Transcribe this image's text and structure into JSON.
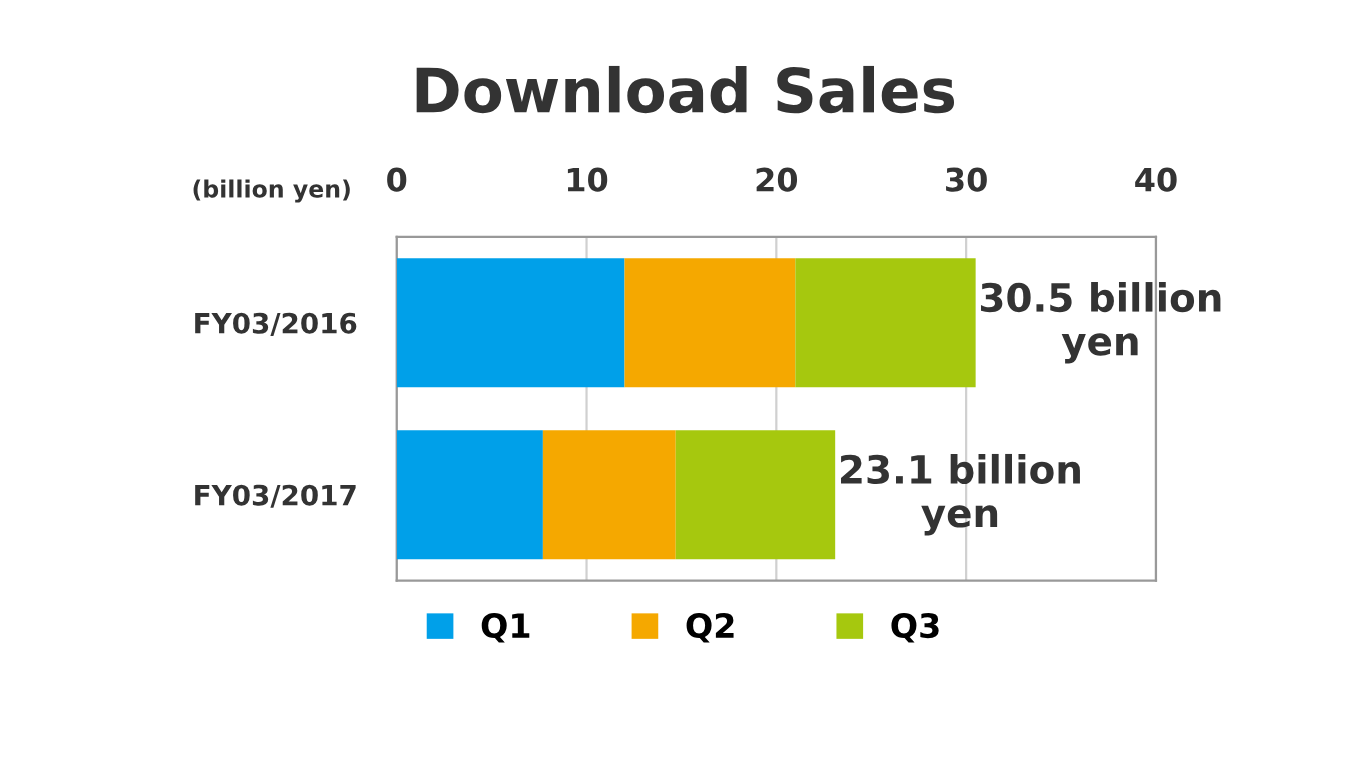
{
  "chart_data": {
    "type": "bar",
    "orientation": "horizontal",
    "stacked": true,
    "title": "Download Sales",
    "xlabel": "(billion yen)",
    "categories": [
      "FY03/2016",
      "FY03/2017"
    ],
    "series": [
      {
        "name": "Q1",
        "color": "#00a0e9",
        "values": [
          12.0,
          7.7
        ]
      },
      {
        "name": "Q2",
        "color": "#f5a800",
        "values": [
          9.0,
          7.0
        ]
      },
      {
        "name": "Q3",
        "color": "#a6c80e",
        "values": [
          9.5,
          8.4
        ]
      }
    ],
    "totals": [
      "30.5 billion\nyen",
      "23.1 billion\nyen"
    ],
    "xlim": [
      0,
      40
    ],
    "xticks": [
      0,
      10,
      20,
      30,
      40
    ],
    "grid": "x",
    "legend": "bottom left"
  }
}
